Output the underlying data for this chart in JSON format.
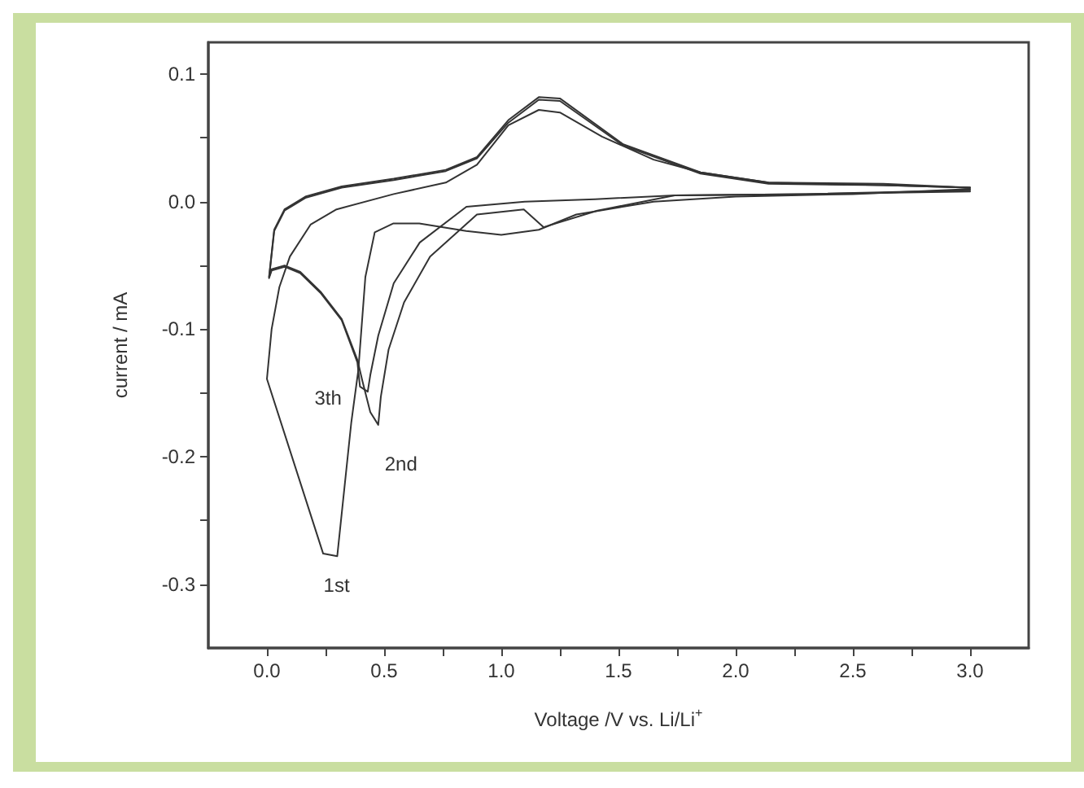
{
  "chart_data": {
    "type": "line",
    "xlabel": "Voltage /V vs. Li/Li$^{+}$",
    "ylabel": "current / mA",
    "xlim": [
      -0.25,
      3.25
    ],
    "ylim": [
      -0.35,
      0.125
    ],
    "xticks": [
      {
        "value": 0,
        "label": "0.0"
      },
      {
        "value": 0.25,
        "label": null
      },
      {
        "value": 0.5,
        "label": "0.5"
      },
      {
        "value": 0.75,
        "label": null
      },
      {
        "value": 1,
        "label": "1.0"
      },
      {
        "value": 1.25,
        "label": null
      },
      {
        "value": 1.5,
        "label": "1.5"
      },
      {
        "value": 1.75,
        "label": null
      },
      {
        "value": 2,
        "label": "2.0"
      },
      {
        "value": 2.25,
        "label": null
      },
      {
        "value": 2.5,
        "label": "2.5"
      },
      {
        "value": 2.75,
        "label": null
      },
      {
        "value": 3,
        "label": "3.0"
      }
    ],
    "yticks": [
      {
        "value": -0.3,
        "label": "-0.3"
      },
      {
        "value": -0.25,
        "label": null
      },
      {
        "value": -0.2,
        "label": "-0.2"
      },
      {
        "value": -0.15,
        "label": null
      },
      {
        "value": -0.1,
        "label": "-0.1"
      },
      {
        "value": -0.05,
        "label": null
      },
      {
        "value": 0,
        "label": "0.0"
      },
      {
        "value": 0.05,
        "label": null
      },
      {
        "value": 0.1,
        "label": "0.1"
      }
    ],
    "grid": false,
    "marker": "none",
    "line_style": "solid",
    "annotations": [
      {
        "text": "1st",
        "x": 0.297,
        "y": -0.278
      },
      {
        "text": "2nd",
        "x": 0.475,
        "y": -0.175
      },
      {
        "text": "3th",
        "x": 0.43,
        "y": -0.149
      }
    ],
    "series": [
      {
        "color": "#333333",
        "x": [
          3.0,
          2.5,
          2.0,
          1.65,
          1.32,
          1.16,
          1.0,
          0.85,
          0.65,
          0.54,
          0.46,
          0.42,
          0.39,
          0.36,
          0.3,
          0.24,
          0.0,
          0.02,
          0.053,
          0.098,
          0.186,
          0.297,
          0.541,
          0.763,
          0.896,
          1.03,
          1.16,
          1.25,
          1.43,
          1.65,
          1.85,
          2.14,
          2.63,
          3.0
        ],
        "values": [
          0.01,
          0.006,
          0.004,
          0.0,
          -0.01,
          -0.022,
          -0.026,
          -0.023,
          -0.017,
          -0.017,
          -0.024,
          -0.059,
          -0.132,
          -0.173,
          -0.278,
          -0.276,
          -0.139,
          -0.1,
          -0.067,
          -0.043,
          -0.018,
          -0.006,
          0.006,
          0.015,
          0.029,
          0.06,
          0.072,
          0.07,
          0.051,
          0.033,
          0.023,
          0.015,
          0.013,
          0.011
        ]
      },
      {
        "color": "#333333",
        "x": [
          3.0,
          2.3,
          1.74,
          1.41,
          1.18,
          1.096,
          0.896,
          0.696,
          0.585,
          0.519,
          0.486,
          0.475,
          0.441,
          0.408,
          0.386,
          0.319,
          0.231,
          0.142,
          0.075,
          0.02,
          0.009,
          0.031,
          0.075,
          0.164,
          0.319,
          0.541,
          0.763,
          0.896,
          1.03,
          1.16,
          1.25,
          1.52,
          1.85,
          2.14,
          2.63,
          3.0
        ],
        "values": [
          0.008,
          0.006,
          0.005,
          -0.007,
          -0.02,
          -0.006,
          -0.01,
          -0.043,
          -0.079,
          -0.116,
          -0.153,
          -0.175,
          -0.165,
          -0.141,
          -0.124,
          -0.092,
          -0.071,
          -0.055,
          -0.05,
          -0.053,
          -0.059,
          -0.022,
          -0.006,
          0.004,
          0.012,
          0.018,
          0.025,
          0.035,
          0.064,
          0.082,
          0.081,
          0.045,
          0.023,
          0.015,
          0.014,
          0.011
        ]
      },
      {
        "color": "#333333",
        "x": [
          3.0,
          2.3,
          1.74,
          1.4,
          1.1,
          0.851,
          0.652,
          0.541,
          0.475,
          0.441,
          0.43,
          0.397,
          0.386,
          0.319,
          0.231,
          0.142,
          0.075,
          0.02,
          0.009,
          0.031,
          0.075,
          0.164,
          0.319,
          0.541,
          0.763,
          0.896,
          1.03,
          1.16,
          1.25,
          1.52,
          1.85,
          2.14,
          2.63,
          3.0
        ],
        "values": [
          0.009,
          0.006,
          0.005,
          0.002,
          0.0,
          -0.004,
          -0.032,
          -0.064,
          -0.105,
          -0.136,
          -0.149,
          -0.145,
          -0.126,
          -0.093,
          -0.072,
          -0.056,
          -0.051,
          -0.054,
          -0.06,
          -0.023,
          -0.007,
          0.003,
          0.011,
          0.017,
          0.024,
          0.034,
          0.062,
          0.08,
          0.079,
          0.044,
          0.022,
          0.014,
          0.013,
          0.011
        ]
      }
    ]
  }
}
